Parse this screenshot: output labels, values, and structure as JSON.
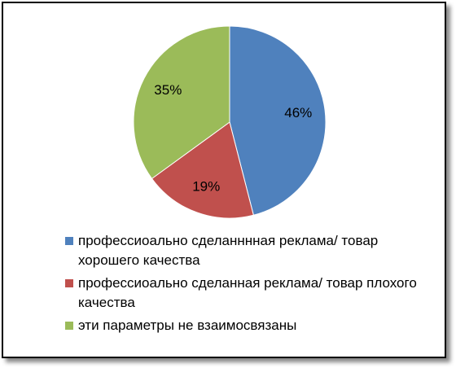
{
  "chart_data": {
    "type": "pie",
    "categories": [
      "профессиоально сделанннная реклама/ товар хорошего качества",
      "профессиоально сделанная реклама/ товар плохого качества",
      "эти параметры не взаимосвязаны"
    ],
    "values": [
      46,
      19,
      35
    ],
    "value_labels": [
      "46%",
      "19%",
      "35%"
    ],
    "colors": [
      "#4f81bd",
      "#c0504d",
      "#9bbb59"
    ],
    "legend": "bottom"
  }
}
